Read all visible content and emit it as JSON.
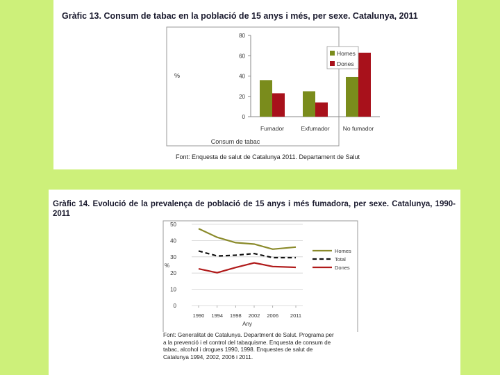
{
  "chart1": {
    "title": "Gràfic 13. Consum de tabac en la població de 15 anys i més, per sexe. Catalunya, 2011",
    "source": "Font: Enquesta de salut de Catalunya 2011. Departament de Salut",
    "ylabel": "%",
    "xlabel": "Consum de tabac"
  },
  "chart2": {
    "title": "Gràfic 14. Evolució de la prevalença de població de 15 anys i més fumadora, per sexe. Catalunya, 1990-2011",
    "source": "Font: Generalitat de Catalunya. Department de Salut. Programa per a la prevenció i el control del tabaquisme. Enquesta de consum de tabac, alcohol i drogues 1990, 1998. Enquestes de salut de Catalunya 1994, 2002, 2006 i 2011.",
    "ylabel": "%",
    "xlabel": "Any"
  },
  "chart_data": [
    {
      "type": "bar",
      "title": "Gràfic 13. Consum de tabac en la població de 15 anys i més, per sexe. Catalunya, 2011",
      "xlabel": "Consum de tabac",
      "ylabel": "%",
      "ylim": [
        0,
        80
      ],
      "yticks": [
        0,
        20,
        40,
        60,
        80
      ],
      "categories": [
        "Fumador",
        "Exfumador",
        "No fumador"
      ],
      "series": [
        {
          "name": "Homes",
          "values": [
            36,
            25,
            39
          ],
          "color": "#7a8c1c"
        },
        {
          "name": "Dones",
          "values": [
            23,
            14,
            63
          ],
          "color": "#a8111b"
        }
      ],
      "legend": "right",
      "grid": false
    },
    {
      "type": "line",
      "title": "Gràfic 14. Evolució de la prevalença de població de 15 anys i més fumadora, per sexe. Catalunya, 1990-2011",
      "xlabel": "Any",
      "ylabel": "%",
      "ylim": [
        0,
        50
      ],
      "yticks": [
        0,
        10,
        20,
        30,
        40,
        50
      ],
      "xlim": [
        1990,
        2011
      ],
      "xticks": [
        1990,
        1994,
        1998,
        2002,
        2006,
        2011
      ],
      "x": [
        1990,
        1994,
        1998,
        2002,
        2006,
        2011
      ],
      "series": [
        {
          "name": "Homes",
          "values": [
            47.3,
            42.0,
            38.7,
            37.8,
            34.7,
            36.0
          ],
          "color": "#8a8a2a",
          "dash": false
        },
        {
          "name": "Total",
          "values": [
            33.6,
            30.5,
            31.0,
            32.0,
            29.5,
            29.5
          ],
          "color": "#111111",
          "dash": true
        },
        {
          "name": "Dones",
          "values": [
            22.6,
            20.2,
            23.4,
            26.3,
            24.0,
            23.5
          ],
          "color": "#b01a1a",
          "dash": false
        }
      ],
      "legend": "right",
      "grid": true
    }
  ]
}
